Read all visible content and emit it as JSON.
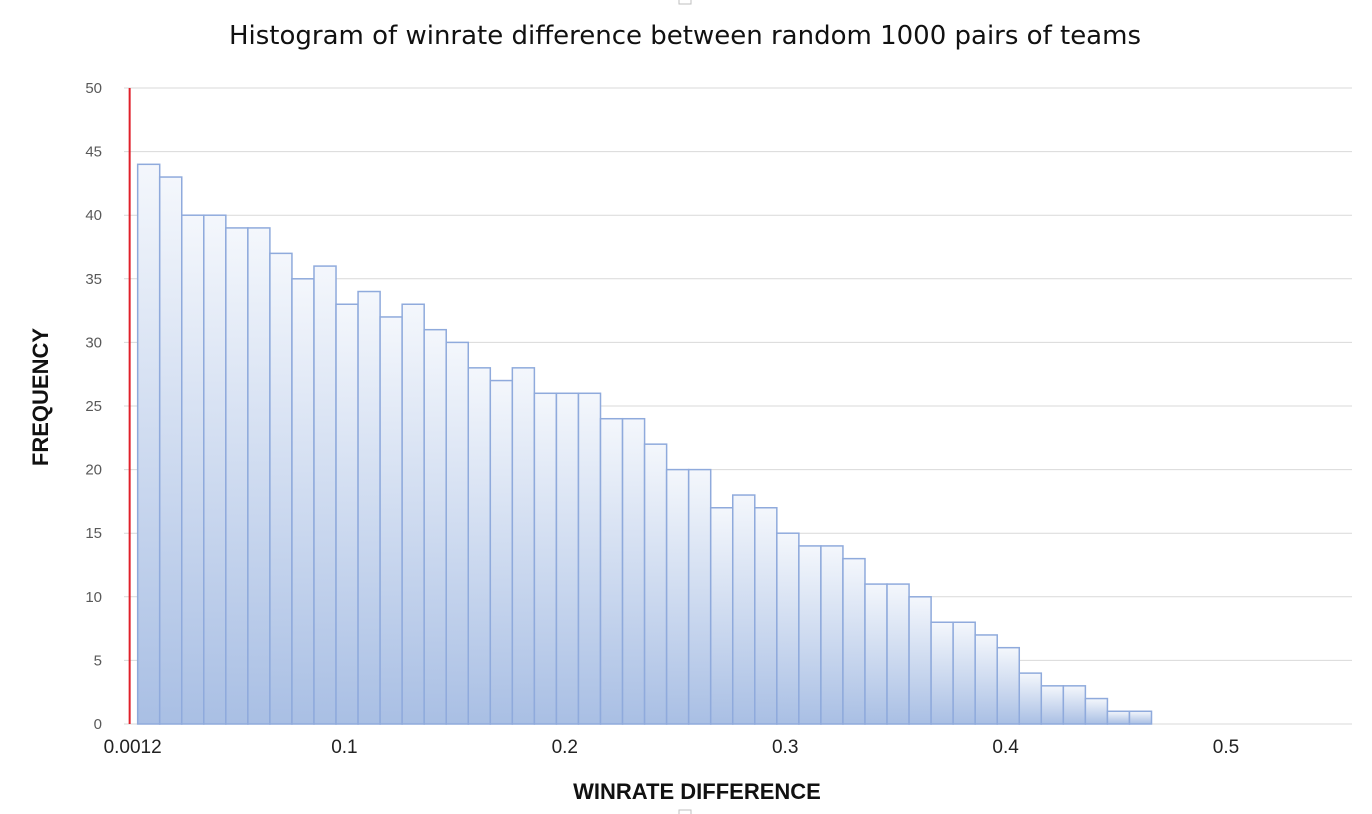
{
  "chart_data": {
    "type": "bar",
    "title": "Histogram of winrate difference between random 1000 pairs of teams",
    "xlabel": "WINRATE DIFFERENCE",
    "ylabel": "FREQUENCY",
    "ylim": [
      0,
      50
    ],
    "yticks": [
      0,
      5,
      10,
      15,
      20,
      25,
      30,
      35,
      40,
      45,
      50
    ],
    "xticks": [
      "0.1",
      "0.2",
      "0.3",
      "0.4",
      "0.5"
    ],
    "bin_width": 0.01,
    "first_bin_center": 0.0112,
    "values": [
      44,
      43,
      40,
      40,
      39,
      39,
      37,
      35,
      36,
      33,
      34,
      32,
      33,
      31,
      30,
      28,
      27,
      28,
      26,
      26,
      26,
      24,
      24,
      22,
      20,
      20,
      17,
      18,
      17,
      15,
      14,
      14,
      13,
      11,
      11,
      10,
      8,
      8,
      7,
      6,
      4,
      3,
      3,
      2,
      1,
      1
    ],
    "grid": true,
    "legend": "none",
    "marker": {
      "value": 0.0012,
      "label": "0.0012",
      "color": "#e0202a"
    },
    "bar_fill_top": "#f4f7fc",
    "bar_fill_bottom": "#a9bfe4",
    "bar_edge": "#8faadc"
  }
}
